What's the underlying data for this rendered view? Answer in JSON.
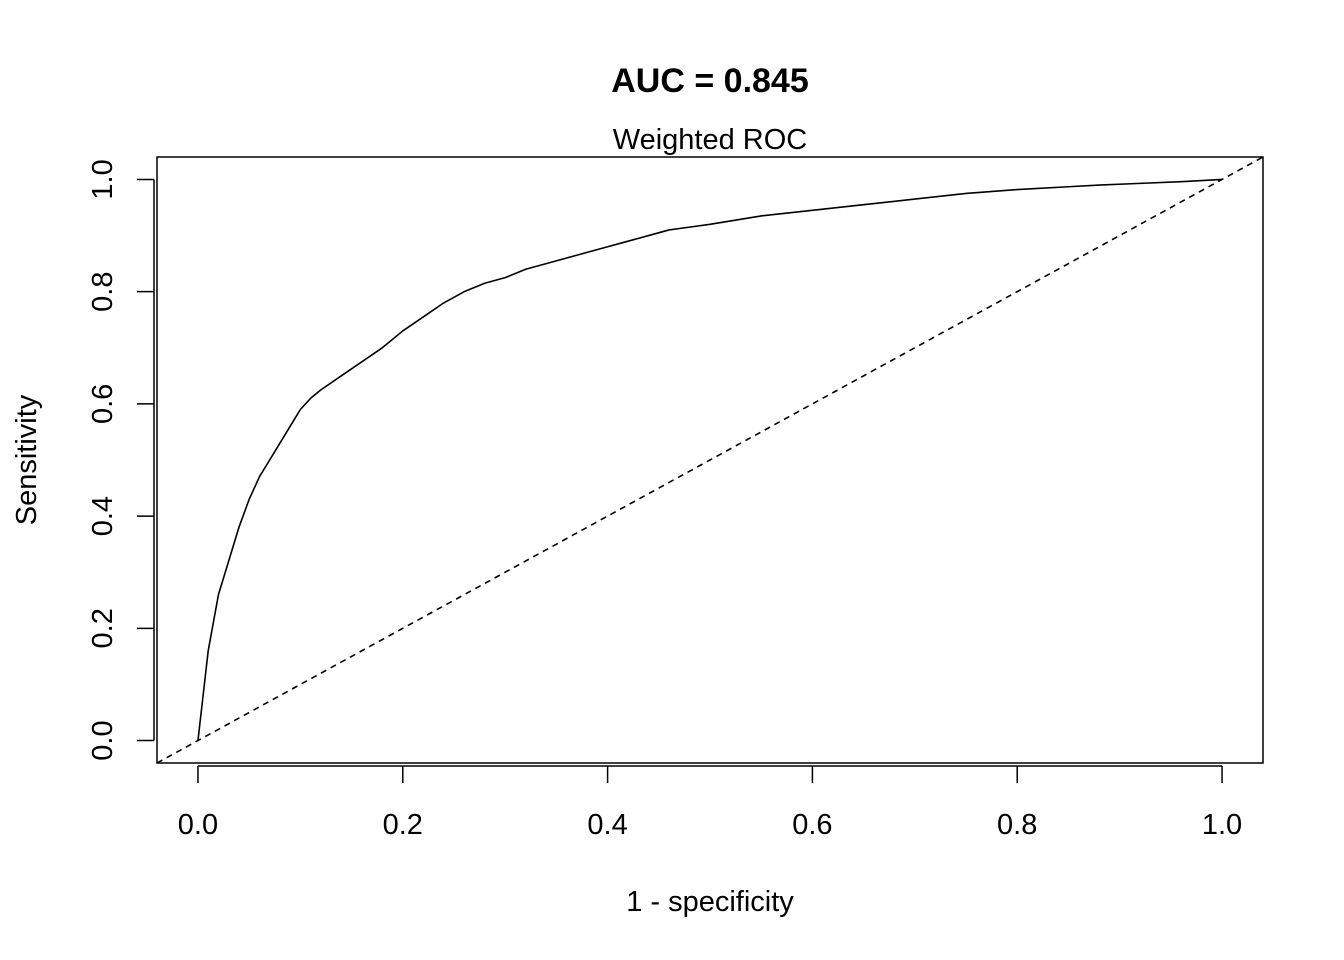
{
  "chart_data": {
    "type": "line",
    "title": "AUC =  0.845",
    "subtitle": "Weighted ROC",
    "xlabel": "1 - specificity",
    "ylabel": "Sensitivity",
    "xlim": [
      -0.04,
      1.04
    ],
    "ylim": [
      -0.04,
      1.04
    ],
    "grid": false,
    "legend": "none",
    "x_ticks": [
      0.0,
      0.2,
      0.4,
      0.6,
      0.8,
      1.0
    ],
    "x_tick_labels": [
      "0.0",
      "0.2",
      "0.4",
      "0.6",
      "0.8",
      "1.0"
    ],
    "y_ticks": [
      0.0,
      0.2,
      0.4,
      0.6,
      0.8,
      1.0
    ],
    "y_tick_labels": [
      "0.0",
      "0.2",
      "0.4",
      "0.6",
      "0.8",
      "1.0"
    ],
    "series": [
      {
        "name": "ROC curve",
        "style": "solid",
        "color": "#000000",
        "x": [
          0.0,
          0.005,
          0.01,
          0.015,
          0.02,
          0.03,
          0.04,
          0.05,
          0.06,
          0.07,
          0.08,
          0.09,
          0.1,
          0.11,
          0.12,
          0.14,
          0.16,
          0.18,
          0.2,
          0.22,
          0.24,
          0.26,
          0.28,
          0.3,
          0.32,
          0.34,
          0.36,
          0.38,
          0.4,
          0.42,
          0.44,
          0.46,
          0.48,
          0.5,
          0.55,
          0.6,
          0.65,
          0.7,
          0.75,
          0.8,
          0.85,
          0.88,
          0.92,
          0.96,
          1.0
        ],
        "y": [
          0.0,
          0.08,
          0.16,
          0.21,
          0.26,
          0.32,
          0.38,
          0.43,
          0.47,
          0.5,
          0.53,
          0.56,
          0.59,
          0.61,
          0.625,
          0.65,
          0.675,
          0.7,
          0.73,
          0.755,
          0.78,
          0.8,
          0.815,
          0.825,
          0.84,
          0.85,
          0.86,
          0.87,
          0.88,
          0.89,
          0.9,
          0.91,
          0.915,
          0.92,
          0.935,
          0.945,
          0.955,
          0.965,
          0.975,
          0.982,
          0.987,
          0.99,
          0.993,
          0.996,
          1.0
        ]
      },
      {
        "name": "Reference diagonal",
        "style": "dashed",
        "color": "#000000",
        "x": [
          -0.04,
          1.04
        ],
        "y": [
          -0.04,
          1.04
        ]
      }
    ]
  }
}
